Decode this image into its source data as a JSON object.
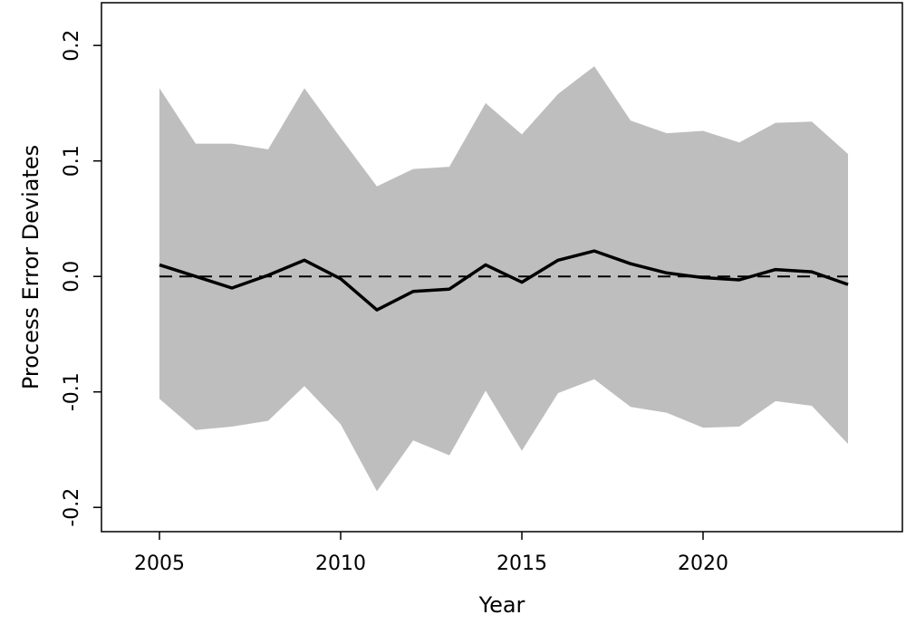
{
  "chart_data": {
    "type": "line",
    "title": "",
    "xlabel": "Year",
    "ylabel": "Process Error Deviates",
    "xlim": [
      2003.4,
      2025.5
    ],
    "ylim": [
      -0.221,
      0.237
    ],
    "x_ticks": [
      2005,
      2010,
      2015,
      2020
    ],
    "x_tick_labels": [
      "2005",
      "2010",
      "2015",
      "2020"
    ],
    "y_ticks": [
      -0.2,
      -0.1,
      0.0,
      0.1,
      0.2
    ],
    "y_tick_labels": [
      "-0.2",
      "-0.1",
      "0.0",
      "0.1",
      "0.2"
    ],
    "grid": false,
    "reference_line": {
      "y": 0,
      "style": "dashed",
      "color": "#000000"
    },
    "x": [
      2005,
      2006,
      2007,
      2008,
      2009,
      2010,
      2011,
      2012,
      2013,
      2014,
      2015,
      2016,
      2017,
      2018,
      2019,
      2020,
      2021,
      2022,
      2023,
      2024
    ],
    "series": [
      {
        "role": "estimate",
        "color": "#000000",
        "values": [
          0.01,
          0.0,
          -0.01,
          0.001,
          0.014,
          -0.002,
          -0.029,
          -0.013,
          -0.011,
          0.01,
          -0.005,
          0.014,
          0.022,
          0.011,
          0.003,
          -0.001,
          -0.003,
          0.006,
          0.004,
          -0.007
        ]
      },
      {
        "role": "band",
        "color": "#bebebe",
        "lower": [
          -0.106,
          -0.133,
          -0.13,
          -0.125,
          -0.095,
          -0.128,
          -0.186,
          -0.142,
          -0.155,
          -0.099,
          -0.151,
          -0.101,
          -0.089,
          -0.113,
          -0.118,
          -0.131,
          -0.13,
          -0.108,
          -0.112,
          -0.145
        ],
        "upper": [
          0.163,
          0.115,
          0.115,
          0.11,
          0.163,
          0.12,
          0.078,
          0.093,
          0.095,
          0.15,
          0.123,
          0.158,
          0.182,
          0.135,
          0.124,
          0.126,
          0.116,
          0.133,
          0.134,
          0.106
        ]
      }
    ]
  }
}
